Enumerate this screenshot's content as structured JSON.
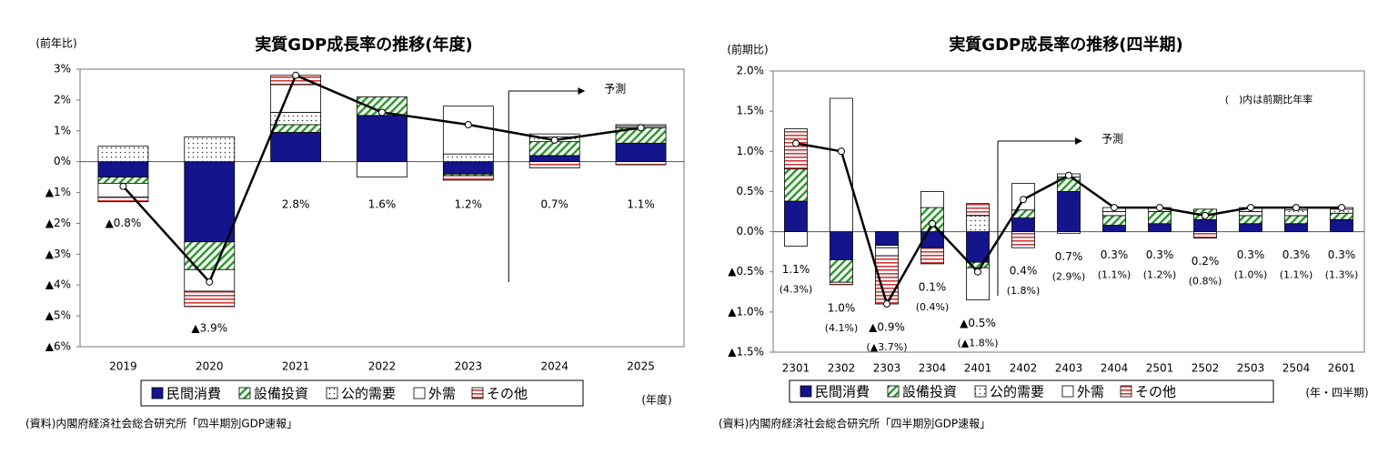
{
  "chart_data": [
    {
      "type": "stacked_bar_line",
      "title": "実質GDP成長率の推移(年度)",
      "y_label": "(前年比)",
      "x_label": "(年度)",
      "source": "(資料)内閣府経済社会総合研究所「四半期別GDP速報」",
      "forecast_label": "予測",
      "forecast_index": 5,
      "categories": [
        "2019",
        "2020",
        "2021",
        "2022",
        "2023",
        "2024",
        "2025"
      ],
      "series": [
        {
          "name": "民間消費",
          "color": "#14148c",
          "pattern": "solid",
          "values": [
            -0.5,
            -2.6,
            0.95,
            1.5,
            -0.4,
            0.2,
            0.6
          ]
        },
        {
          "name": "設備投資",
          "color": "#2e9a2e",
          "pattern": "diagonal",
          "values": [
            -0.2,
            -0.9,
            0.25,
            0.6,
            -0.05,
            0.45,
            0.5
          ]
        },
        {
          "name": "公的需要",
          "color": "#333333",
          "pattern": "dots",
          "values": [
            0.5,
            0.8,
            0.4,
            0,
            0.25,
            0.15,
            0.05
          ]
        },
        {
          "name": "外需",
          "color": "#ffffff",
          "pattern": "solid",
          "values": [
            -0.45,
            -0.7,
            0.9,
            -0.5,
            1.55,
            0.1,
            0.05
          ]
        },
        {
          "name": "その他",
          "color": "#d23a3a",
          "pattern": "horizontal",
          "values": [
            -0.15,
            -0.5,
            0.3,
            0,
            -0.15,
            -0.2,
            -0.1
          ]
        }
      ],
      "line": {
        "color": "#000000",
        "values": [
          -0.8,
          -3.9,
          2.8,
          1.6,
          1.2,
          0.7,
          1.1
        ],
        "value_labels": [
          "▲0.8%",
          "▲3.9%",
          "2.8%",
          "1.6%",
          "1.2%",
          "0.7%",
          "1.1%"
        ]
      },
      "ylim": [
        -6,
        3
      ],
      "yticks": [
        {
          "value": -6,
          "label": "▲6%"
        },
        {
          "value": -5,
          "label": "▲5%"
        },
        {
          "value": -4,
          "label": "▲4%"
        },
        {
          "value": -3,
          "label": "▲3%"
        },
        {
          "value": -2,
          "label": "▲2%"
        },
        {
          "value": -1,
          "label": "▲1%"
        },
        {
          "value": 0,
          "label": "0%"
        },
        {
          "value": 1,
          "label": "1%"
        },
        {
          "value": 2,
          "label": "2%"
        },
        {
          "value": 3,
          "label": "3%"
        }
      ],
      "grid": false,
      "legend": "bottom"
    },
    {
      "type": "stacked_bar_line",
      "title": "実質GDP成長率の推移(四半期)",
      "y_label": "(前期比)",
      "x_label": "(年・四半期)",
      "source": "(資料)内閣府経済社会総合研究所「四半期別GDP速報」",
      "annotation": "(　)内は前期比年率",
      "forecast_label": "予測",
      "forecast_index": 5,
      "categories": [
        "2301",
        "2302",
        "2303",
        "2304",
        "2401",
        "2402",
        "2403",
        "2404",
        "2501",
        "2502",
        "2503",
        "2504",
        "2601"
      ],
      "series": [
        {
          "name": "民間消費",
          "color": "#14148c",
          "pattern": "solid",
          "values": [
            0.38,
            -0.35,
            -0.17,
            -0.2,
            -0.38,
            0.17,
            0.5,
            0.08,
            0.1,
            0.15,
            0.1,
            0.1,
            0.15
          ]
        },
        {
          "name": "設備投資",
          "color": "#2e9a2e",
          "pattern": "diagonal",
          "values": [
            0.4,
            -0.28,
            0,
            0.3,
            -0.07,
            0.1,
            0.18,
            0.12,
            0.15,
            0.13,
            0.1,
            0.1,
            0.08
          ]
        },
        {
          "name": "公的需要",
          "color": "#333333",
          "pattern": "dots",
          "values": [
            0,
            0,
            -0.03,
            0,
            0.2,
            0,
            0,
            0.05,
            0.05,
            0,
            0.05,
            0.07,
            0.05
          ]
        },
        {
          "name": "外需",
          "color": "#ffffff",
          "pattern": "solid",
          "values": [
            -0.18,
            1.66,
            -0.1,
            0.2,
            -0.4,
            0.33,
            0.04,
            0.05,
            0,
            0,
            0.05,
            0.03,
            0.02
          ]
        },
        {
          "name": "その他",
          "color": "#d23a3a",
          "pattern": "horizontal",
          "values": [
            0.5,
            -0.03,
            -0.6,
            -0.2,
            0.15,
            -0.2,
            -0.02,
            0,
            0,
            -0.08,
            0,
            0,
            0
          ]
        }
      ],
      "line": {
        "color": "#000000",
        "values": [
          1.1,
          1.0,
          -0.9,
          0.1,
          -0.5,
          0.4,
          0.7,
          0.3,
          0.3,
          0.2,
          0.3,
          0.3,
          0.3
        ],
        "value_labels": [
          "1.1%",
          "1.0%",
          "▲0.9%",
          "0.1%",
          "▲0.5%",
          "0.4%",
          "0.7%",
          "0.3%",
          "0.3%",
          "0.2%",
          "0.3%",
          "0.3%",
          "0.3%"
        ],
        "annualized_values": [
          4.3,
          4.1,
          -3.7,
          0.4,
          -1.8,
          1.8,
          2.9,
          1.1,
          1.2,
          0.8,
          1.0,
          1.1,
          1.3
        ],
        "annualized_labels": [
          "(4.3%)",
          "(4.1%)",
          "(▲3.7%)",
          "(0.4%)",
          "(▲1.8%)",
          "(1.8%)",
          "(2.9%)",
          "(1.1%)",
          "(1.2%)",
          "(0.8%)",
          "(1.0%)",
          "(1.1%)",
          "(1.3%)"
        ]
      },
      "ylim": [
        -1.5,
        2.0
      ],
      "yticks": [
        {
          "value": -1.5,
          "label": "▲1.5%"
        },
        {
          "value": -1.0,
          "label": "▲1.0%"
        },
        {
          "value": -0.5,
          "label": "▲0.5%"
        },
        {
          "value": 0,
          "label": "0.0%"
        },
        {
          "value": 0.5,
          "label": "0.5%"
        },
        {
          "value": 1.0,
          "label": "1.0%"
        },
        {
          "value": 1.5,
          "label": "1.5%"
        },
        {
          "value": 2.0,
          "label": "2.0%"
        }
      ],
      "grid": false,
      "legend": "bottom"
    }
  ]
}
